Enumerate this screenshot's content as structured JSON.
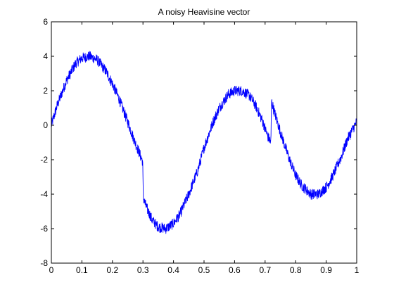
{
  "chart_data": {
    "type": "line",
    "title": "A noisy Heavisine vector",
    "xlabel": "",
    "ylabel": "",
    "xlim": [
      0,
      1
    ],
    "ylim": [
      -8,
      6
    ],
    "xticks": [
      "0",
      "0.1",
      "0.2",
      "0.3",
      "0.4",
      "0.5",
      "0.6",
      "0.7",
      "0.8",
      "0.9",
      "1"
    ],
    "yticks": [
      "-8",
      "-6",
      "-4",
      "-2",
      "0",
      "2",
      "4",
      "6"
    ],
    "grid": false,
    "legend": "none",
    "series": [
      {
        "color": "#0000ff",
        "noise_amplitude": 0.3,
        "x": [
          0,
          0.02,
          0.05,
          0.08,
          0.1,
          0.125,
          0.15,
          0.18,
          0.2,
          0.22,
          0.25,
          0.27,
          0.29,
          0.299,
          0.301,
          0.31,
          0.33,
          0.35,
          0.375,
          0.4,
          0.42,
          0.45,
          0.48,
          0.5,
          0.53,
          0.55,
          0.58,
          0.6,
          0.625,
          0.65,
          0.67,
          0.69,
          0.71,
          0.719,
          0.721,
          0.73,
          0.75,
          0.78,
          0.8,
          0.82,
          0.85,
          0.875,
          0.9,
          0.92,
          0.95,
          0.97,
          1.0
        ],
        "y": [
          0.0,
          1.2,
          2.6,
          3.6,
          3.9,
          4.0,
          3.8,
          3.1,
          2.4,
          1.6,
          0.2,
          -0.8,
          -1.7,
          -2.1,
          -4.2,
          -4.7,
          -5.5,
          -5.9,
          -6.0,
          -5.7,
          -5.2,
          -4.0,
          -2.6,
          -1.3,
          0.2,
          1.0,
          1.8,
          2.0,
          2.0,
          1.7,
          1.1,
          0.3,
          -0.7,
          -1.0,
          1.4,
          0.8,
          -0.4,
          -2.0,
          -2.9,
          -3.5,
          -4.0,
          -4.0,
          -3.6,
          -3.0,
          -1.8,
          -0.8,
          0.2
        ]
      }
    ]
  }
}
